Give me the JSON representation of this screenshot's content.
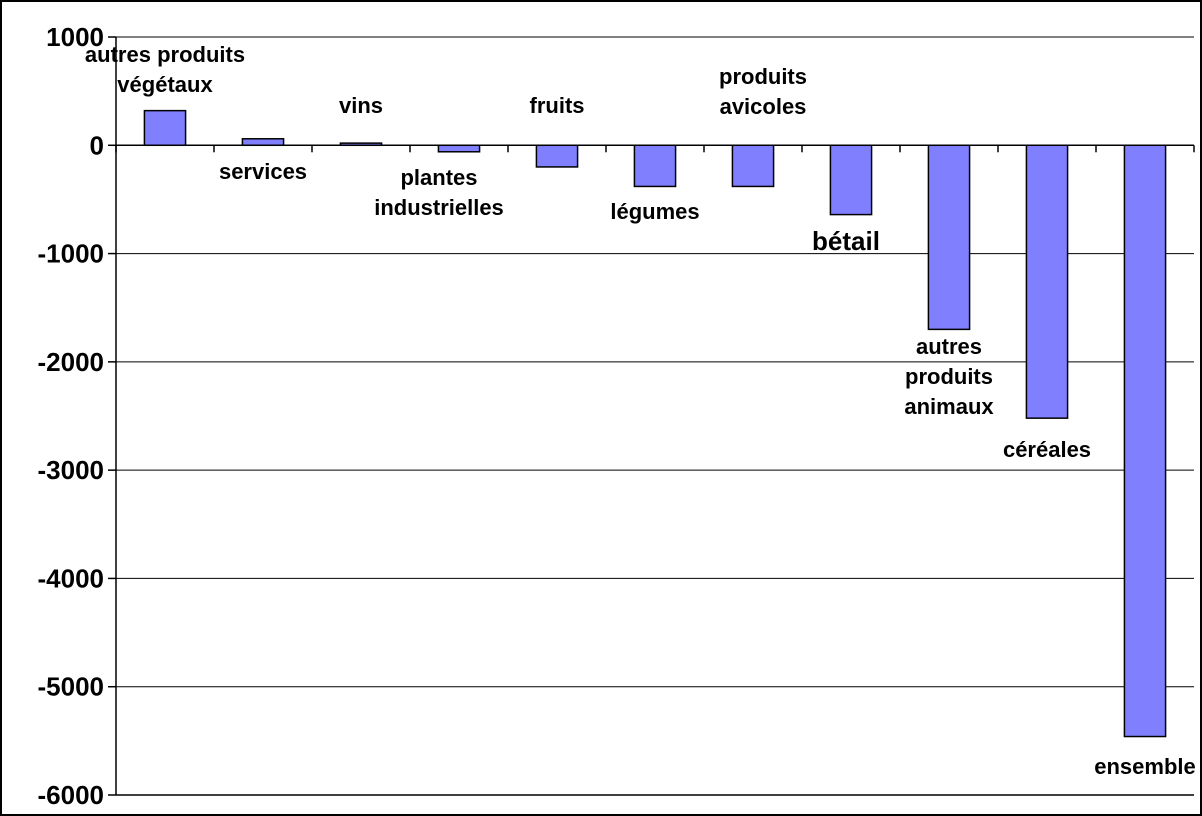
{
  "chart_data": {
    "type": "bar",
    "title": "",
    "xlabel": "",
    "ylabel": "",
    "ylim": [
      -6000,
      1000
    ],
    "yticks": [
      1000,
      0,
      -1000,
      -2000,
      -3000,
      -4000,
      -5000,
      -6000
    ],
    "grid": true,
    "categories": [
      "autres produits végétaux",
      "services",
      "vins",
      "plantes industrielles",
      "fruits",
      "légumes",
      "produits avicoles",
      "bétail",
      "autres produits animaux",
      "céréales",
      "ensemble"
    ],
    "values": [
      320,
      60,
      20,
      -60,
      -200,
      -380,
      -380,
      -640,
      -1700,
      -2520,
      -5460
    ],
    "bar_color": "#8080FF",
    "bar_edge_color": "#000000"
  }
}
